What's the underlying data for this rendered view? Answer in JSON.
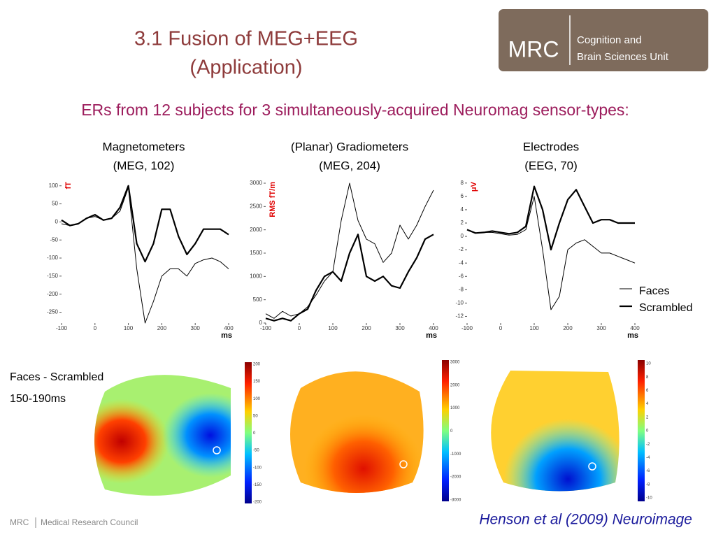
{
  "header": {
    "title_line1": "3.1 Fusion of MEG+EEG",
    "title_line2": "(Application)"
  },
  "logo": {
    "mark": "MRC",
    "line1": "Cognition and",
    "line2": "Brain Sciences Unit"
  },
  "subtitle": "ERs from 12 subjects for 3 simultaneously-acquired Neuromag sensor-types:",
  "chart_data": [
    {
      "type": "line",
      "title": "Magnetometers",
      "subtitle": "(MEG, 102)",
      "ylabel": "fT",
      "xlabel": "ms",
      "x": [
        -100,
        -75,
        -50,
        -25,
        0,
        25,
        50,
        75,
        100,
        125,
        150,
        175,
        200,
        225,
        250,
        275,
        300,
        325,
        350,
        375,
        400
      ],
      "xlim": [
        -100,
        400
      ],
      "xticks": [
        -100,
        0,
        100,
        200,
        300,
        400
      ],
      "ylim": [
        -280,
        115
      ],
      "yticks": [
        -250,
        -200,
        -150,
        -100,
        -50,
        0,
        50,
        100
      ],
      "series": [
        {
          "name": "Faces",
          "color": "#000000",
          "values": [
            -5,
            -10,
            -5,
            10,
            15,
            5,
            10,
            30,
            95,
            -130,
            -280,
            -220,
            -150,
            -130,
            -130,
            -150,
            -115,
            -105,
            -100,
            -110,
            -130
          ]
        },
        {
          "name": "Scrambled",
          "color": "#000000",
          "values": [
            5,
            -10,
            -5,
            10,
            20,
            5,
            10,
            40,
            100,
            -60,
            -110,
            -60,
            35,
            35,
            -40,
            -90,
            -60,
            -20,
            -20,
            -20,
            -35
          ]
        }
      ]
    },
    {
      "type": "line",
      "title": "(Planar) Gradiometers",
      "subtitle": "(MEG, 204)",
      "ylabel": "RMS fT/m",
      "xlabel": "ms",
      "x": [
        -100,
        -75,
        -50,
        -25,
        0,
        25,
        50,
        75,
        100,
        125,
        150,
        175,
        200,
        225,
        250,
        275,
        300,
        325,
        350,
        375,
        400
      ],
      "xlim": [
        -100,
        400
      ],
      "xticks": [
        -100,
        0,
        100,
        200,
        300,
        400
      ],
      "ylim": [
        0,
        3060
      ],
      "yticks": [
        0,
        500,
        1000,
        1500,
        2000,
        2500,
        3000
      ],
      "series": [
        {
          "name": "Faces",
          "color": "#000000",
          "values": [
            200,
            100,
            250,
            150,
            200,
            350,
            600,
            900,
            1100,
            2200,
            3000,
            2200,
            1800,
            1700,
            1300,
            1500,
            2100,
            1800,
            2100,
            2500,
            2850
          ]
        },
        {
          "name": "Scrambled",
          "color": "#000000",
          "values": [
            100,
            50,
            100,
            50,
            200,
            300,
            700,
            1000,
            1100,
            900,
            1500,
            1900,
            1000,
            900,
            1000,
            800,
            750,
            1100,
            1400,
            1800,
            1900
          ]
        }
      ]
    },
    {
      "type": "line",
      "title": "Electrodes",
      "subtitle": "(EEG, 70)",
      "ylabel": "μV",
      "xlabel": "ms",
      "x": [
        -100,
        -75,
        -50,
        -25,
        0,
        25,
        50,
        75,
        100,
        125,
        150,
        175,
        200,
        225,
        250,
        275,
        300,
        325,
        350,
        375,
        400
      ],
      "xlim": [
        -100,
        400
      ],
      "xticks": [
        -100,
        0,
        100,
        200,
        300,
        400
      ],
      "ylim": [
        -13,
        8.4
      ],
      "yticks": [
        -12,
        -10,
        -8,
        -6,
        -4,
        -2,
        0,
        2,
        4,
        6,
        8
      ],
      "series": [
        {
          "name": "Faces",
          "color": "#000000",
          "values": [
            1,
            0.5,
            0.6,
            0.6,
            0.4,
            0.2,
            0.3,
            1,
            6,
            -2,
            -11,
            -9,
            -2,
            -1,
            -0.5,
            -1.5,
            -2.5,
            -2.5,
            -3,
            -3.5,
            -4
          ]
        },
        {
          "name": "Scrambled",
          "color": "#000000",
          "values": [
            1,
            0.5,
            0.6,
            0.8,
            0.6,
            0.4,
            0.6,
            1.5,
            7.5,
            4,
            -2,
            2,
            5.5,
            7,
            4.5,
            2,
            2.5,
            2.5,
            2,
            2,
            2
          ]
        }
      ]
    }
  ],
  "topomap": {
    "label1": "Faces - Scrambled",
    "label2": "150-190ms",
    "colorbars": [
      [
        "200",
        "150",
        "100",
        "50",
        "0",
        "-50",
        "-100",
        "-150",
        "-200"
      ],
      [
        "3000",
        "2000",
        "1000",
        "0",
        "-1000",
        "-2000",
        "-3000"
      ],
      [
        "10",
        "8",
        "6",
        "4",
        "2",
        "0",
        "-2",
        "-4",
        "-6",
        "-8",
        "-10"
      ]
    ]
  },
  "citation": "Henson et al (2009) Neuroimage",
  "footer": {
    "mark": "MRC",
    "name": "Medical Research Council"
  }
}
